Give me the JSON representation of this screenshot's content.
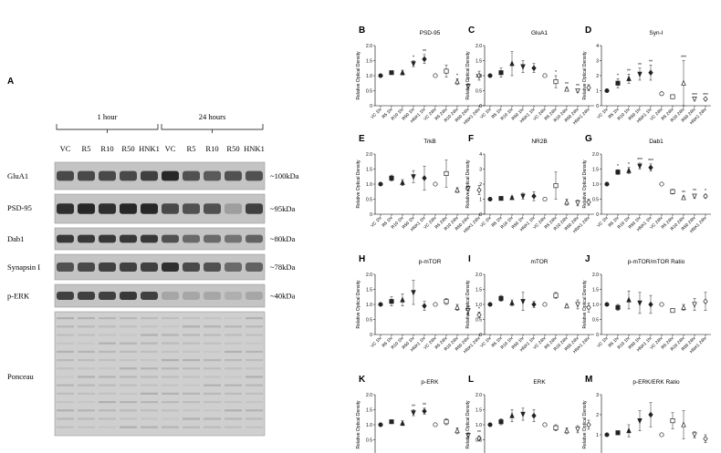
{
  "panel_a": {
    "letter": "A",
    "groups": [
      "1 hour",
      "24 hours"
    ],
    "lanes": [
      "VC",
      "R5",
      "R10",
      "R50",
      "HNK1",
      "VC",
      "R5",
      "R10",
      "R50",
      "HNK1"
    ],
    "blots": [
      {
        "label": "GluA1",
        "mw": "~100kDa",
        "intensity": [
          0.75,
          0.75,
          0.75,
          0.75,
          0.8,
          0.95,
          0.7,
          0.65,
          0.7,
          0.7
        ]
      },
      {
        "label": "PSD-95",
        "mw": "~95kDa",
        "intensity": [
          0.9,
          0.95,
          0.9,
          0.95,
          0.95,
          0.75,
          0.7,
          0.7,
          0.25,
          0.8
        ]
      },
      {
        "label": "Dab1",
        "mw": "~80kDa",
        "intensity": [
          0.85,
          0.85,
          0.85,
          0.85,
          0.85,
          0.7,
          0.55,
          0.55,
          0.5,
          0.6
        ]
      },
      {
        "label": "Synapsin I",
        "mw": "~78kDa",
        "intensity": [
          0.7,
          0.75,
          0.8,
          0.8,
          0.8,
          0.9,
          0.75,
          0.7,
          0.55,
          0.6
        ]
      },
      {
        "label": "p-ERK",
        "mw": "~40kDa",
        "intensity": [
          0.8,
          0.8,
          0.8,
          0.85,
          0.8,
          0.2,
          0.2,
          0.2,
          0.15,
          0.2
        ]
      },
      {
        "label": "Ponceau",
        "mw": "",
        "intensity": [
          0.4,
          0.4,
          0.4,
          0.4,
          0.4,
          0.4,
          0.4,
          0.4,
          0.4,
          0.4
        ]
      }
    ]
  },
  "chart_data": [
    {
      "letter": "B",
      "type": "scatter",
      "title": "PSD-95",
      "ylabel": "Relative Optical Density",
      "ylim": [
        0,
        2
      ],
      "yticks": [
        "0",
        "0.5",
        "1.0",
        "1.5",
        "2.0"
      ],
      "categories": [
        "VC 1hr",
        "R5 1hr",
        "R10 1hr",
        "R50 1hr",
        "HNK1 1hr",
        "VC 24hr",
        "R5 24hr",
        "R10 24hr",
        "R50 24hr",
        "HNK1 24hr"
      ],
      "values": [
        1.0,
        1.1,
        1.1,
        1.4,
        1.55,
        1.0,
        1.15,
        0.8,
        0.65,
        1.0
      ],
      "errors": [
        0.02,
        0.05,
        0.08,
        0.1,
        0.15,
        0.02,
        0.2,
        0.1,
        0.08,
        0.15
      ],
      "sig": [
        "",
        "",
        "",
        "*",
        "**",
        "",
        "",
        "*",
        "*",
        ""
      ]
    },
    {
      "letter": "C",
      "type": "scatter",
      "title": "GluA1",
      "ylabel": "Relative Optical Density",
      "ylim": [
        0,
        2
      ],
      "yticks": [
        "0",
        "0.5",
        "1.0",
        "1.5",
        "2.0"
      ],
      "categories": [
        "VC 1hr",
        "R5 1hr",
        "R10 1hr",
        "R50 1hr",
        "HNK1 1hr",
        "VC 24hr",
        "R5 24hr",
        "R10 24hr",
        "R50 24hr",
        "HNK1 24hr"
      ],
      "values": [
        1.0,
        1.1,
        1.4,
        1.3,
        1.25,
        1.0,
        0.8,
        0.55,
        0.5,
        0.6
      ],
      "errors": [
        0.02,
        0.15,
        0.4,
        0.2,
        0.15,
        0.02,
        0.2,
        0.05,
        0.05,
        0.1
      ],
      "sig": [
        "",
        "",
        "",
        "",
        "",
        "",
        "*",
        "**",
        "**",
        ""
      ]
    },
    {
      "letter": "D",
      "type": "scatter",
      "title": "Syn-I",
      "ylabel": "Relative Optical Density",
      "ylim": [
        0,
        4
      ],
      "yticks": [
        "0",
        "1",
        "2",
        "3",
        "4"
      ],
      "categories": [
        "VC 1hr",
        "R5 1hr",
        "R10 1hr",
        "R50 1hr",
        "HNK1 1hr",
        "VC 24hr",
        "R5 24hr",
        "R10 24hr",
        "R50 24hr",
        "HNK1 24hr"
      ],
      "values": [
        1.0,
        1.5,
        1.8,
        2.1,
        2.2,
        0.8,
        0.6,
        1.5,
        0.45,
        0.45
      ],
      "errors": [
        0.02,
        0.3,
        0.3,
        0.4,
        0.5,
        0.05,
        0.05,
        1.5,
        0.05,
        0.05
      ],
      "sig": [
        "",
        "*",
        "**",
        "**",
        "**",
        "",
        "",
        "***",
        "***",
        "***"
      ]
    },
    {
      "letter": "E",
      "type": "scatter",
      "title": "TrkB",
      "ylabel": "Relative Optical Density",
      "ylim": [
        0,
        2
      ],
      "yticks": [
        "0",
        "0.5",
        "1.0",
        "1.5",
        "2.0"
      ],
      "categories": [
        "VC 1hr",
        "R5 1hr",
        "R10 1hr",
        "R50 1hr",
        "HNK1 1hr",
        "VC 24hr",
        "R5 24hr",
        "R10 24hr",
        "R50 24hr",
        "HNK1 24hr"
      ],
      "values": [
        1.0,
        1.2,
        1.05,
        1.25,
        1.2,
        1.0,
        1.35,
        0.8,
        0.85,
        0.8
      ],
      "errors": [
        0.02,
        0.1,
        0.1,
        0.2,
        0.4,
        0.02,
        0.45,
        0.08,
        0.08,
        0.15
      ],
      "sig": [
        "",
        "",
        "",
        "",
        "",
        "",
        "",
        "",
        "",
        ""
      ]
    },
    {
      "letter": "F",
      "type": "scatter",
      "title": "NR2B",
      "ylabel": "Relative Optical Density",
      "ylim": [
        0,
        4
      ],
      "yticks": [
        "0",
        "1",
        "2",
        "3",
        "4"
      ],
      "categories": [
        "VC 1hr",
        "R5 1hr",
        "R10 1hr",
        "R50 1hr",
        "HNK1 1hr",
        "VC 24hr",
        "R5 24hr",
        "R10 24hr",
        "R50 24hr",
        "HNK1 24hr"
      ],
      "values": [
        1.0,
        1.05,
        1.1,
        1.2,
        1.2,
        1.0,
        1.9,
        0.8,
        0.75,
        0.8
      ],
      "errors": [
        0.02,
        0.08,
        0.1,
        0.2,
        0.3,
        0.02,
        0.9,
        0.2,
        0.2,
        0.2
      ],
      "sig": [
        "",
        "",
        "",
        "",
        "",
        "",
        "",
        "",
        "",
        ""
      ]
    },
    {
      "letter": "G",
      "type": "scatter",
      "title": "Dab1",
      "ylabel": "Relative Optical Density",
      "ylim": [
        0,
        2
      ],
      "yticks": [
        "0",
        "0.5",
        "1.0",
        "1.5",
        "2.0"
      ],
      "categories": [
        "VC 1hr",
        "R5 1hr",
        "R10 1hr",
        "R50 1hr",
        "HNK1 1hr",
        "VC 24hr",
        "R5 24hr",
        "R10 24hr",
        "R50 24hr",
        "HNK1 24hr"
      ],
      "values": [
        1.0,
        1.4,
        1.45,
        1.6,
        1.55,
        1.0,
        0.75,
        0.55,
        0.6,
        0.6
      ],
      "errors": [
        0.02,
        0.08,
        0.1,
        0.1,
        0.12,
        0.02,
        0.08,
        0.05,
        0.06,
        0.06
      ],
      "sig": [
        "",
        "*",
        "*",
        "***",
        "***",
        "",
        "",
        "**",
        "**",
        "*"
      ]
    },
    {
      "letter": "H",
      "type": "scatter",
      "title": "p-mTOR",
      "ylabel": "Relative Optical Density",
      "ylim": [
        0,
        2
      ],
      "yticks": [
        "0",
        "0.5",
        "1.0",
        "1.5",
        "2.0"
      ],
      "categories": [
        "VC 1hr",
        "R5 1hr",
        "R10 1hr",
        "R50 1hr",
        "HNK1 1hr",
        "VC 24hr",
        "R5 24hr",
        "R10 24hr",
        "R50 24hr",
        "HNK1 24hr"
      ],
      "values": [
        1.0,
        1.1,
        1.15,
        1.4,
        0.95,
        1.0,
        1.1,
        0.9,
        0.8,
        0.65
      ],
      "errors": [
        0.02,
        0.15,
        0.2,
        0.4,
        0.15,
        0.02,
        0.1,
        0.1,
        0.15,
        0.1
      ],
      "sig": [
        "",
        "",
        "",
        "",
        "",
        "",
        "",
        "",
        "",
        "*"
      ]
    },
    {
      "letter": "I",
      "type": "scatter",
      "title": "mTOR",
      "ylabel": "Relative Optical Density",
      "ylim": [
        0,
        2
      ],
      "yticks": [
        "0",
        "0.5",
        "1.0",
        "1.5",
        "2.0"
      ],
      "categories": [
        "VC 1hr",
        "R5 1hr",
        "R10 1hr",
        "R50 1hr",
        "HNK1 1hr",
        "VC 24hr",
        "R5 24hr",
        "R10 24hr",
        "R50 24hr",
        "HNK1 24hr"
      ],
      "values": [
        1.0,
        1.2,
        1.05,
        1.1,
        1.0,
        1.0,
        1.3,
        0.95,
        1.0,
        0.9
      ],
      "errors": [
        0.02,
        0.1,
        0.1,
        0.3,
        0.1,
        0.02,
        0.1,
        0.05,
        0.15,
        0.15
      ],
      "sig": [
        "",
        "",
        "",
        "",
        "",
        "",
        "",
        "",
        "",
        ""
      ]
    },
    {
      "letter": "J",
      "type": "scatter",
      "title": "p-mTOR/mTOR Ratio",
      "ylabel": "Relative Optical Density",
      "ylim": [
        0,
        2
      ],
      "yticks": [
        "0",
        "0.5",
        "1.0",
        "1.5",
        "2.0"
      ],
      "categories": [
        "VC 1hr",
        "R5 1hr",
        "R10 1hr",
        "R50 1hr",
        "HNK1 1hr",
        "VC 24hr",
        "R5 24hr",
        "R10 24hr",
        "R50 24hr",
        "HNK1 24hr"
      ],
      "values": [
        1.0,
        0.9,
        1.15,
        1.05,
        1.0,
        1.0,
        0.8,
        0.9,
        1.0,
        1.1
      ],
      "errors": [
        0.02,
        0.1,
        0.3,
        0.35,
        0.3,
        0.02,
        0.05,
        0.1,
        0.2,
        0.3
      ],
      "sig": [
        "",
        "",
        "",
        "",
        "",
        "",
        "",
        "",
        "",
        ""
      ]
    },
    {
      "letter": "K",
      "type": "scatter",
      "title": "p-ERK",
      "ylabel": "Relative Optical Density",
      "ylim": [
        0,
        2
      ],
      "yticks": [
        "0",
        "0.5",
        "1.0",
        "1.5",
        "2.0"
      ],
      "categories": [
        "VC 1hr",
        "R5 1hr",
        "R10 1hr",
        "R50 1hr",
        "HNK1 1hr",
        "VC 24hr",
        "R5 24hr",
        "R10 24hr",
        "R50 24hr",
        "HNK1 24hr"
      ],
      "values": [
        1.0,
        1.1,
        1.05,
        1.4,
        1.45,
        1.0,
        1.1,
        0.8,
        0.65,
        0.55
      ],
      "errors": [
        0.02,
        0.05,
        0.08,
        0.1,
        0.1,
        0.02,
        0.1,
        0.1,
        0.08,
        0.08
      ],
      "sig": [
        "",
        "",
        "",
        "**",
        "**",
        "",
        "",
        "",
        "",
        "**"
      ]
    },
    {
      "letter": "L",
      "type": "scatter",
      "title": "ERK",
      "ylabel": "Relative Optical Density",
      "ylim": [
        0,
        2
      ],
      "yticks": [
        "0",
        "0.5",
        "1.0",
        "1.5",
        "2.0"
      ],
      "categories": [
        "VC 1hr",
        "R5 1hr",
        "R10 1hr",
        "R50 1hr",
        "HNK1 1hr",
        "VC 24hr",
        "R5 24hr",
        "R10 24hr",
        "R50 24hr",
        "HNK1 24hr"
      ],
      "values": [
        1.0,
        1.1,
        1.3,
        1.35,
        1.3,
        1.0,
        0.9,
        0.8,
        0.85,
        1.0
      ],
      "errors": [
        0.02,
        0.1,
        0.2,
        0.2,
        0.2,
        0.02,
        0.1,
        0.1,
        0.12,
        0.15
      ],
      "sig": [
        "",
        "",
        "",
        "",
        "",
        "",
        "",
        "",
        "",
        ""
      ]
    },
    {
      "letter": "M",
      "type": "scatter",
      "title": "p-ERK/ERK Ratio",
      "ylabel": "Relative Optical Density",
      "ylim": [
        0,
        3
      ],
      "yticks": [
        "0",
        "1",
        "2",
        "3"
      ],
      "categories": [
        "VC 1hr",
        "R5 1hr",
        "R10 1hr",
        "R50 1hr",
        "HNK1 1hr",
        "VC 24hr",
        "R5 24hr",
        "R10 24hr",
        "R50 24hr",
        "HNK1 24hr"
      ],
      "values": [
        1.0,
        1.1,
        1.2,
        1.7,
        2.0,
        1.0,
        1.7,
        1.5,
        1.0,
        0.8
      ],
      "errors": [
        0.02,
        0.1,
        0.3,
        0.5,
        0.6,
        0.02,
        0.4,
        0.7,
        0.15,
        0.2
      ],
      "sig": [
        "",
        "",
        "",
        "",
        "",
        "",
        "",
        "",
        "",
        ""
      ]
    }
  ]
}
